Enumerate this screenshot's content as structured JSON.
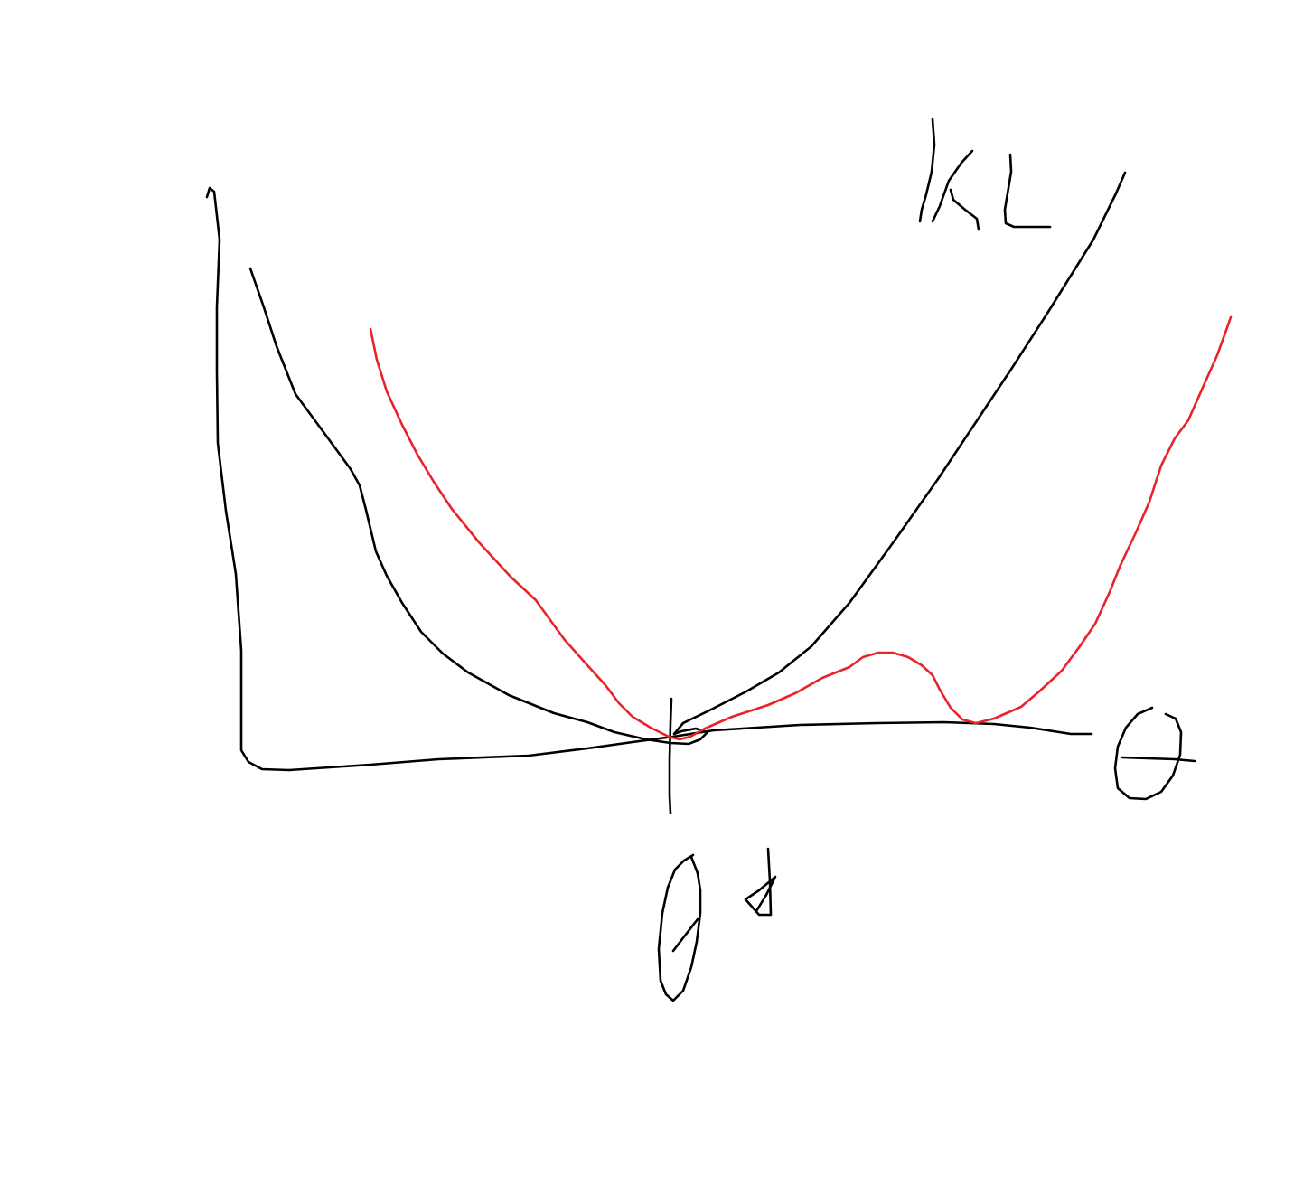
{
  "labels": {
    "y_axis": "KL",
    "x_axis": "θ",
    "x_marker": "θ*"
  },
  "colors": {
    "background": "#ffffff",
    "black_ink": "#000000",
    "red_ink": "#e8232a"
  }
}
